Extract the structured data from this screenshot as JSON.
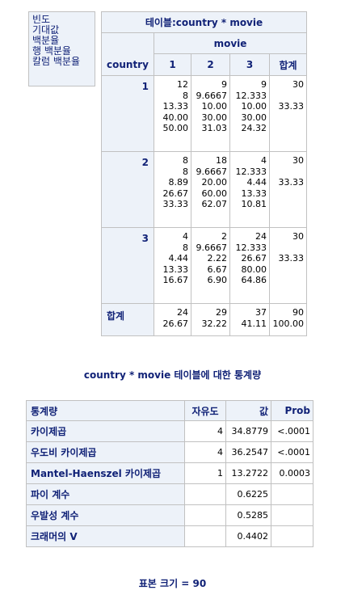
{
  "legend": [
    "빈도",
    "기대값",
    "백분율",
    "행 백분율",
    "칼럼 백분율"
  ],
  "table_title": "테이블:country * movie",
  "col_var": "movie",
  "row_var": "country",
  "col_headers": [
    "1",
    "2",
    "3",
    "합계"
  ],
  "rows": [
    {
      "label": "1",
      "cells": [
        [
          "12",
          "8",
          "13.33",
          "40.00",
          "50.00"
        ],
        [
          "9",
          "9.6667",
          "10.00",
          "30.00",
          "31.03"
        ],
        [
          "9",
          "12.333",
          "10.00",
          "30.00",
          "24.32"
        ],
        [
          "30",
          "",
          "33.33",
          "",
          ""
        ]
      ]
    },
    {
      "label": "2",
      "cells": [
        [
          "8",
          "8",
          "8.89",
          "26.67",
          "33.33"
        ],
        [
          "18",
          "9.6667",
          "20.00",
          "60.00",
          "62.07"
        ],
        [
          "4",
          "12.333",
          "4.44",
          "13.33",
          "10.81"
        ],
        [
          "30",
          "",
          "33.33",
          "",
          ""
        ]
      ]
    },
    {
      "label": "3",
      "cells": [
        [
          "4",
          "8",
          "4.44",
          "13.33",
          "16.67"
        ],
        [
          "2",
          "9.6667",
          "2.22",
          "6.67",
          "6.90"
        ],
        [
          "24",
          "12.333",
          "26.67",
          "80.00",
          "64.86"
        ],
        [
          "30",
          "",
          "33.33",
          "",
          ""
        ]
      ]
    }
  ],
  "total": {
    "label": "합계",
    "cells": [
      [
        "24",
        "26.67"
      ],
      [
        "29",
        "32.22"
      ],
      [
        "37",
        "41.11"
      ],
      [
        "90",
        "100.00"
      ]
    ]
  },
  "stats_title": "country * movie 테이블에 대한 통계량",
  "stats_headers": [
    "통계량",
    "자유도",
    "값",
    "Prob"
  ],
  "stats_rows": [
    [
      "카이제곱",
      "4",
      "34.8779",
      "<.0001"
    ],
    [
      "우도비 카이제곱",
      "4",
      "36.2547",
      "<.0001"
    ],
    [
      "Mantel-Haenszel 카이제곱",
      "1",
      "13.2722",
      "0.0003"
    ],
    [
      "파이 계수",
      "",
      "0.6225",
      ""
    ],
    [
      "우발성 계수",
      "",
      "0.5285",
      ""
    ],
    [
      "크래머의 V",
      "",
      "0.4402",
      ""
    ]
  ],
  "sample_size": "표본 크기 = 90"
}
